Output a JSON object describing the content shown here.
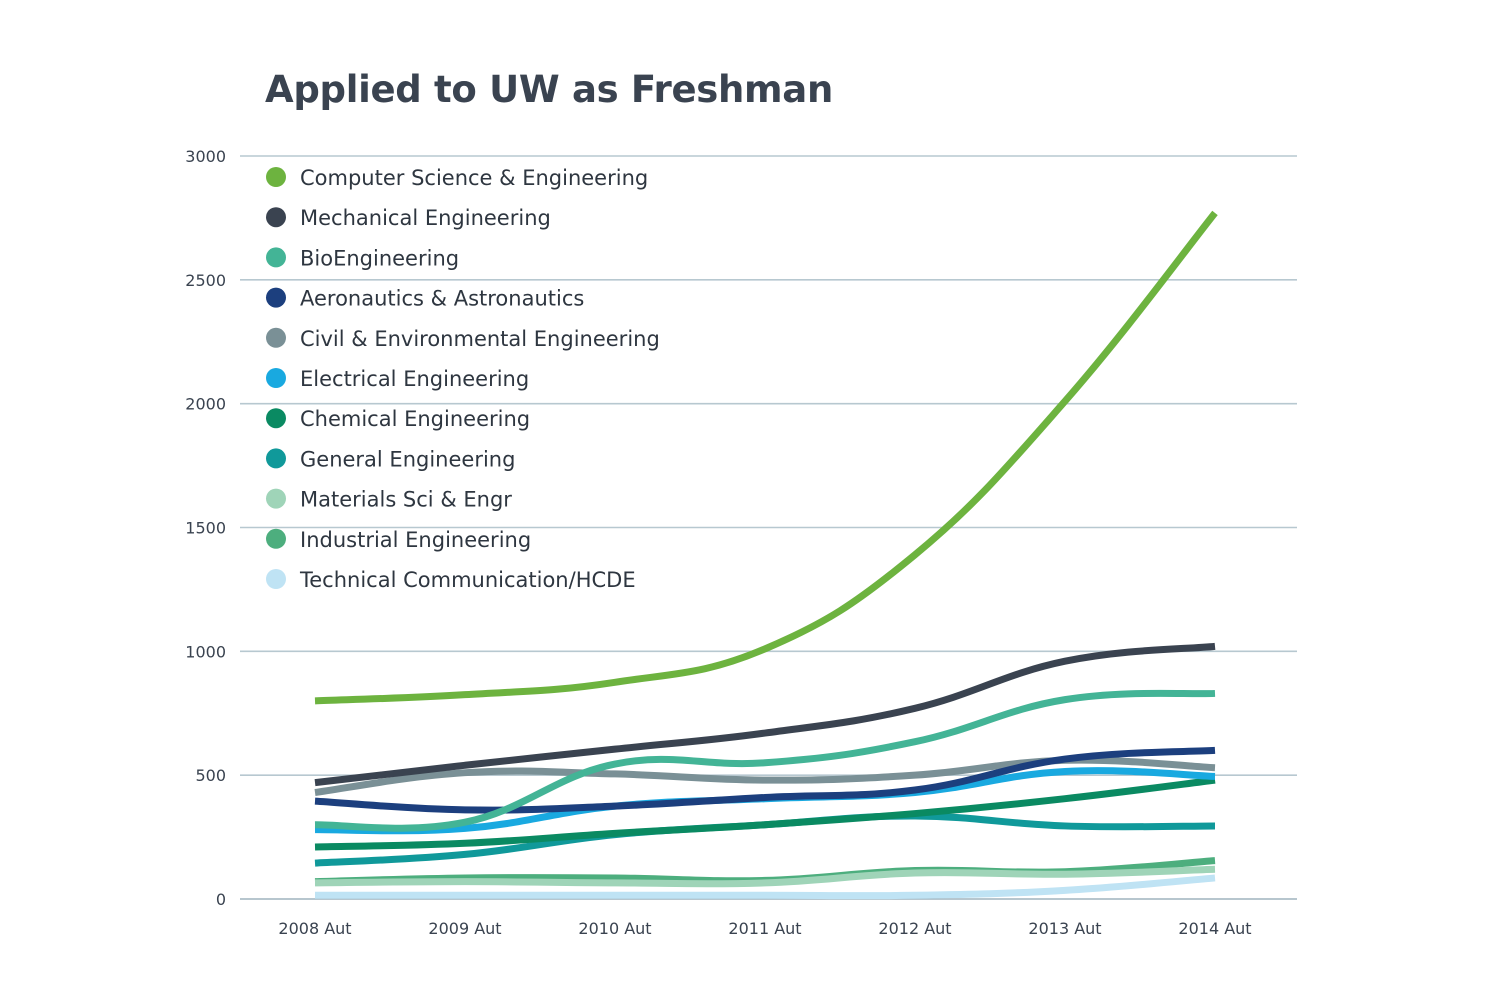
{
  "chart_data": {
    "type": "line",
    "title": "Applied to UW as Freshman",
    "xlabel": "",
    "ylabel": "",
    "ylim": [
      0,
      3000
    ],
    "yticks": [
      0,
      500,
      1000,
      1500,
      2000,
      2500,
      3000
    ],
    "grid": true,
    "legend_position": "top-left",
    "categories": [
      "2008 Aut",
      "2009 Aut",
      "2010 Aut",
      "2011 Aut",
      "2012 Aut",
      "2013 Aut",
      "2014 Aut"
    ],
    "series": [
      {
        "name": "Computer Science & Engineering",
        "color": "#6db33f",
        "values": [
          800,
          825,
          875,
          1010,
          1390,
          2010,
          2770
        ]
      },
      {
        "name": "Mechanical Engineering",
        "color": "#3a4350",
        "values": [
          470,
          540,
          605,
          670,
          770,
          960,
          1020
        ]
      },
      {
        "name": "BioEngineering",
        "color": "#43b496",
        "values": [
          300,
          310,
          545,
          550,
          635,
          805,
          830
        ]
      },
      {
        "name": "Aeronautics & Astronautics",
        "color": "#1c3f7e",
        "values": [
          395,
          360,
          375,
          410,
          440,
          565,
          600
        ]
      },
      {
        "name": "Civil & Environmental Engineering",
        "color": "#7a9096",
        "values": [
          430,
          510,
          505,
          480,
          500,
          560,
          530
        ]
      },
      {
        "name": "Electrical Engineering",
        "color": "#19a9e0",
        "values": [
          280,
          285,
          375,
          405,
          430,
          515,
          495
        ]
      },
      {
        "name": "Chemical Engineering",
        "color": "#0a8a62",
        "values": [
          210,
          225,
          265,
          300,
          345,
          405,
          480
        ]
      },
      {
        "name": "General Engineering",
        "color": "#10999a",
        "values": [
          145,
          180,
          260,
          300,
          335,
          295,
          295
        ]
      },
      {
        "name": "Materials Sci & Engr",
        "color": "#9fd4b8",
        "values": [
          65,
          70,
          65,
          65,
          105,
          100,
          120
        ]
      },
      {
        "name": "Industrial Engineering",
        "color": "#4dae7e",
        "values": [
          70,
          85,
          85,
          75,
          115,
          110,
          155
        ]
      },
      {
        "name": "Technical Communication/HCDE",
        "color": "#bfe3f4",
        "values": [
          15,
          15,
          15,
          15,
          15,
          35,
          85
        ]
      }
    ]
  }
}
